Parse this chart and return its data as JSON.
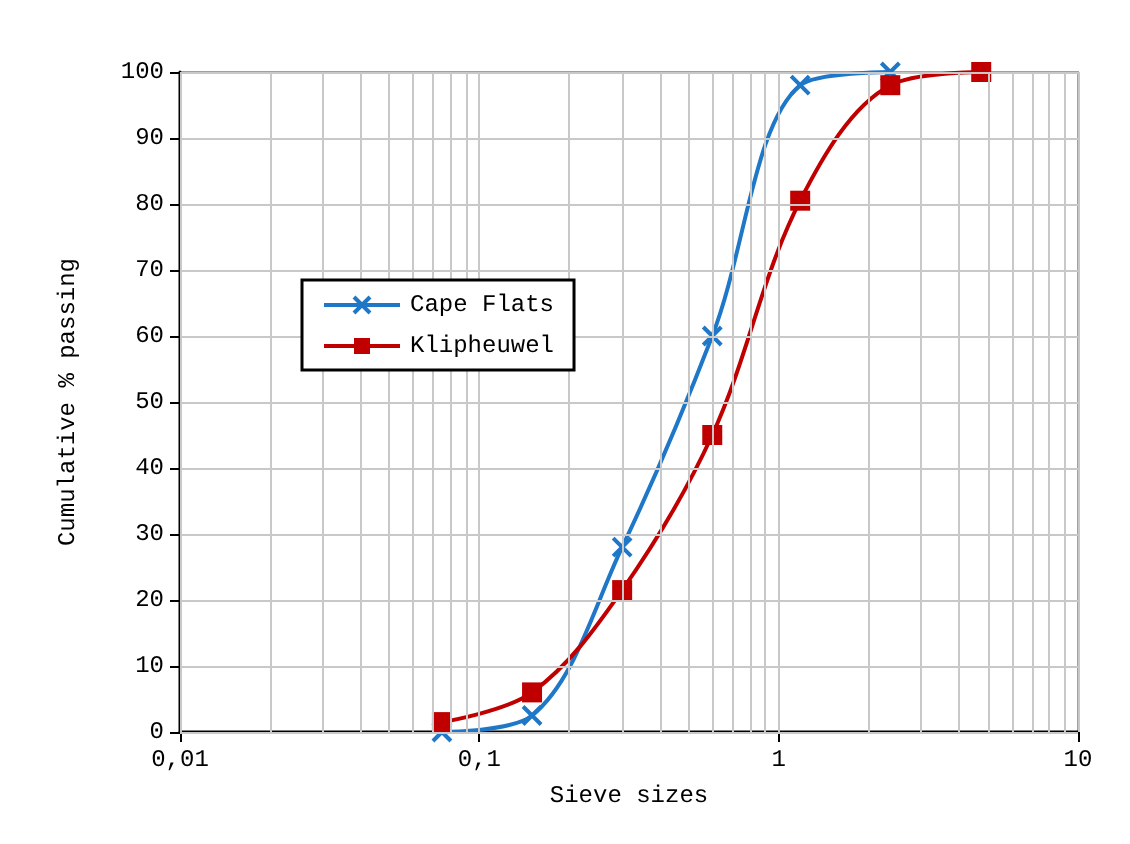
{
  "chart_data": {
    "type": "line",
    "xlabel": "Sieve sizes",
    "ylabel": "Cumulative % passing",
    "log": "x",
    "grid": true,
    "legend": "left",
    "xlim": [
      0.01,
      10
    ],
    "ylim": [
      0,
      100
    ],
    "xticks": [
      {
        "value": 0.01,
        "label": "0,01"
      },
      {
        "value": 0.02,
        "label": null
      },
      {
        "value": 0.03,
        "label": null
      },
      {
        "value": 0.04,
        "label": null
      },
      {
        "value": 0.05,
        "label": null
      },
      {
        "value": 0.06,
        "label": null
      },
      {
        "value": 0.07,
        "label": null
      },
      {
        "value": 0.08,
        "label": null
      },
      {
        "value": 0.09,
        "label": null
      },
      {
        "value": 0.1,
        "label": "0,1"
      },
      {
        "value": 0.2,
        "label": null
      },
      {
        "value": 0.3,
        "label": null
      },
      {
        "value": 0.4,
        "label": null
      },
      {
        "value": 0.5,
        "label": null
      },
      {
        "value": 0.6,
        "label": null
      },
      {
        "value": 0.7,
        "label": null
      },
      {
        "value": 0.8,
        "label": null
      },
      {
        "value": 0.9,
        "label": null
      },
      1,
      {
        "value": 2,
        "label": null
      },
      {
        "value": 3,
        "label": null
      },
      {
        "value": 4,
        "label": null
      },
      {
        "value": 5,
        "label": null
      },
      {
        "value": 6,
        "label": null
      },
      {
        "value": 7,
        "label": null
      },
      {
        "value": 8,
        "label": null
      },
      {
        "value": 9,
        "label": null
      },
      10
    ],
    "yticks": [
      0,
      10,
      20,
      30,
      40,
      50,
      60,
      70,
      80,
      90,
      100
    ],
    "series": [
      {
        "name": "Cape Flats",
        "color": "#1f77c8",
        "marker": "cross",
        "x": [
          0.075,
          0.15,
          0.3,
          0.6,
          1.18,
          2.36
        ],
        "values": [
          0,
          2.5,
          28,
          60,
          98,
          100
        ]
      },
      {
        "name": "Klipheuwel",
        "color": "#c00000",
        "marker": "square",
        "x": [
          0.075,
          0.15,
          0.3,
          0.6,
          1.18,
          2.36,
          4.75
        ],
        "values": [
          1.5,
          6,
          21.5,
          45,
          80.5,
          98,
          100
        ]
      }
    ]
  }
}
